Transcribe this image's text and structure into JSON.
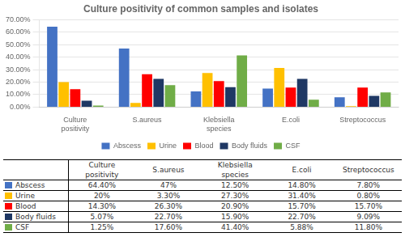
{
  "chart_data": {
    "type": "bar",
    "title": "Culture positivity of common samples and isolates",
    "categories": [
      "Culture\npositivity",
      "S.aureus",
      "Klebsiella\nspecies",
      "E.coli",
      "Streptococcus"
    ],
    "series": [
      {
        "name": "Abscess",
        "color": "#4472C4",
        "values": [
          64.4,
          47.0,
          12.5,
          14.8,
          7.8
        ],
        "value_labels": [
          "64.40%",
          "47%",
          "12.50%",
          "14.80%",
          "7.80%"
        ]
      },
      {
        "name": "Urine",
        "color": "#FFC000",
        "values": [
          20.0,
          3.3,
          27.3,
          31.4,
          0.8
        ],
        "value_labels": [
          "20%",
          "3.30%",
          "27.30%",
          "31.40%",
          "0.80%"
        ]
      },
      {
        "name": "Blood",
        "color": "#FF0000",
        "values": [
          14.3,
          26.3,
          20.9,
          15.7,
          15.7
        ],
        "value_labels": [
          "14.30%",
          "26.30%",
          "20.90%",
          "15.70%",
          "15.70%"
        ]
      },
      {
        "name": "Body fluids",
        "color": "#1F3864",
        "values": [
          5.07,
          22.7,
          15.9,
          22.7,
          9.09
        ],
        "value_labels": [
          "5.07%",
          "22.70%",
          "15.90%",
          "22.70%",
          "9.09%"
        ]
      },
      {
        "name": "CSF",
        "color": "#70AD47",
        "values": [
          1.25,
          17.6,
          41.4,
          5.88,
          11.8
        ],
        "value_labels": [
          "1.25%",
          "17.60%",
          "41.40%",
          "5.88%",
          "11.80%"
        ]
      }
    ],
    "ylim": [
      0,
      70
    ],
    "yticks": [
      {
        "value": 0,
        "label": "0.00%"
      },
      {
        "value": 10,
        "label": "10.00%"
      },
      {
        "value": 20,
        "label": "20.00%"
      },
      {
        "value": 30,
        "label": "30.00%"
      },
      {
        "value": 40,
        "label": "40.00%"
      },
      {
        "value": 50,
        "label": "50.00%"
      },
      {
        "value": 60,
        "label": "60.00%"
      },
      {
        "value": 70,
        "label": "70.00%"
      }
    ],
    "grid": true,
    "legend": "bottom"
  }
}
